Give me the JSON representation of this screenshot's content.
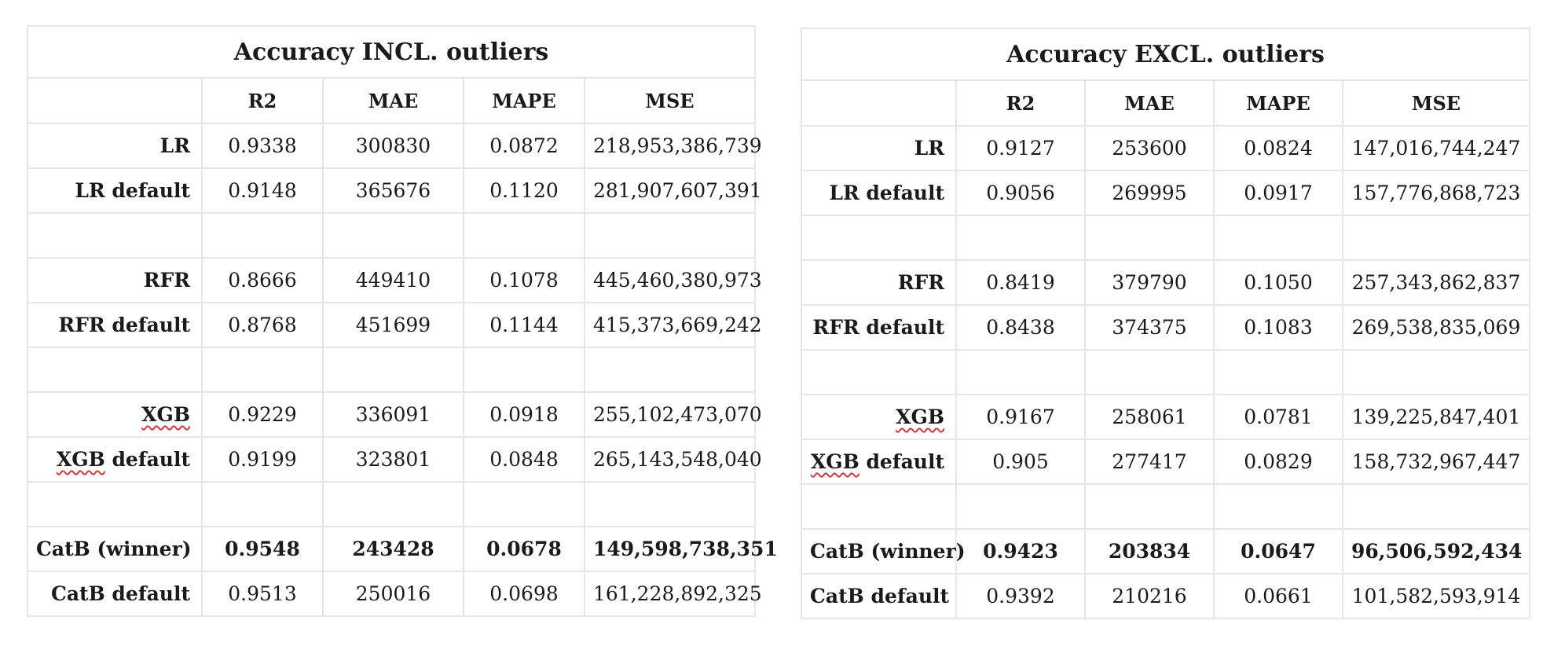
{
  "tables": [
    {
      "title": "Accuracy INCL. outliers",
      "columns": [
        "R2",
        "MAE",
        "MAPE",
        "MSE"
      ],
      "rows": [
        {
          "label": "LR",
          "values": [
            "0.9338",
            "300830",
            "0.0872",
            "218,953,386,739"
          ],
          "bold": false
        },
        {
          "label": "LR default",
          "values": [
            "0.9148",
            "365676",
            "0.1120",
            "281,907,607,391"
          ],
          "bold": false
        },
        {
          "spacer": true
        },
        {
          "label": "RFR",
          "values": [
            "0.8666",
            "449410",
            "0.1078",
            "445,460,380,973"
          ],
          "bold": false
        },
        {
          "label": "RFR default",
          "values": [
            "0.8768",
            "451699",
            "0.1144",
            "415,373,669,242"
          ],
          "bold": false
        },
        {
          "spacer": true
        },
        {
          "label": "XGB",
          "values": [
            "0.9229",
            "336091",
            "0.0918",
            "255,102,473,070"
          ],
          "bold": false
        },
        {
          "label": "XGB default",
          "values": [
            "0.9199",
            "323801",
            "0.0848",
            "265,143,548,040"
          ],
          "bold": false
        },
        {
          "spacer": true
        },
        {
          "label": "CatB (winner)",
          "values": [
            "0.9548",
            "243428",
            "0.0678",
            "149,598,738,351"
          ],
          "bold": true
        },
        {
          "label": "CatB default",
          "values": [
            "0.9513",
            "250016",
            "0.0698",
            "161,228,892,325"
          ],
          "bold": false
        }
      ]
    },
    {
      "title": "Accuracy EXCL. outliers",
      "columns": [
        "R2",
        "MAE",
        "MAPE",
        "MSE"
      ],
      "rows": [
        {
          "label": "LR",
          "values": [
            "0.9127",
            "253600",
            "0.0824",
            "147,016,744,247"
          ],
          "bold": false
        },
        {
          "label": "LR default",
          "values": [
            "0.9056",
            "269995",
            "0.0917",
            "157,776,868,723"
          ],
          "bold": false
        },
        {
          "spacer": true
        },
        {
          "label": "RFR",
          "values": [
            "0.8419",
            "379790",
            "0.1050",
            "257,343,862,837"
          ],
          "bold": false
        },
        {
          "label": "RFR default",
          "values": [
            "0.8438",
            "374375",
            "0.1083",
            "269,538,835,069"
          ],
          "bold": false
        },
        {
          "spacer": true
        },
        {
          "label": "XGB",
          "values": [
            "0.9167",
            "258061",
            "0.0781",
            "139,225,847,401"
          ],
          "bold": false
        },
        {
          "label": "XGB default",
          "values": [
            "0.905",
            "277417",
            "0.0829",
            "158,732,967,447"
          ],
          "bold": false
        },
        {
          "spacer": true
        },
        {
          "label": "CatB (winner)",
          "values": [
            "0.9423",
            "203834",
            "0.0647",
            "96,506,592,434"
          ],
          "bold": true
        },
        {
          "label": "CatB default",
          "values": [
            "0.9392",
            "210216",
            "0.0661",
            "101,582,593,914"
          ],
          "bold": false
        }
      ]
    }
  ]
}
